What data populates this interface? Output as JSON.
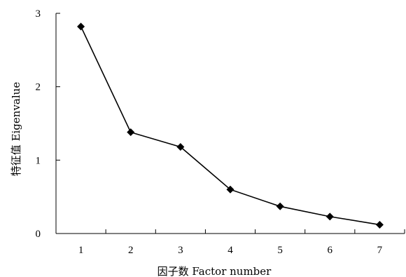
{
  "chart_data": {
    "type": "line",
    "title": "",
    "xlabel": "因子数 Factor number",
    "ylabel": "特征值 Eigenvalue",
    "x": [
      1,
      2,
      3,
      4,
      5,
      6,
      7
    ],
    "xlim": [
      0.5,
      7.5
    ],
    "ylim": [
      0,
      3
    ],
    "yticks": [
      0,
      1,
      2,
      3
    ],
    "series": [
      {
        "values": [
          2.82,
          1.38,
          1.18,
          0.6,
          0.37,
          0.23,
          0.12
        ]
      }
    ],
    "marker": "diamond",
    "grid": false,
    "legend": "none",
    "colors": {
      "line": "#000000",
      "marker": "#000000",
      "axis": "#000000"
    }
  }
}
